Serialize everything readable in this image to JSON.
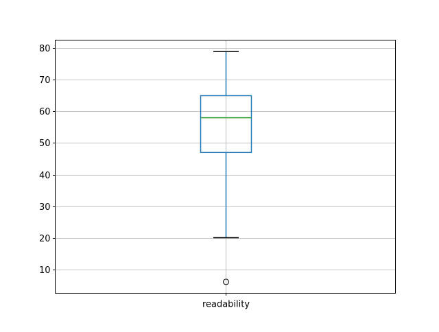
{
  "chart_data": {
    "type": "box",
    "categories": [
      "readability"
    ],
    "series": [
      {
        "whisker_low": 20,
        "q1": 47,
        "median": 58,
        "q3": 65,
        "whisker_high": 79,
        "outliers": [
          6
        ]
      }
    ],
    "ylim": [
      2.4,
      82.6
    ],
    "yticks": [
      10,
      20,
      30,
      40,
      50,
      60,
      70,
      80
    ],
    "ytick_labels": [
      "10",
      "20",
      "30",
      "40",
      "50",
      "60",
      "70",
      "80"
    ],
    "grid": true,
    "colors": {
      "box": "#1f77b4",
      "median": "#2ca02c",
      "caps": "#000000",
      "grid": "#b0b0b0"
    }
  }
}
